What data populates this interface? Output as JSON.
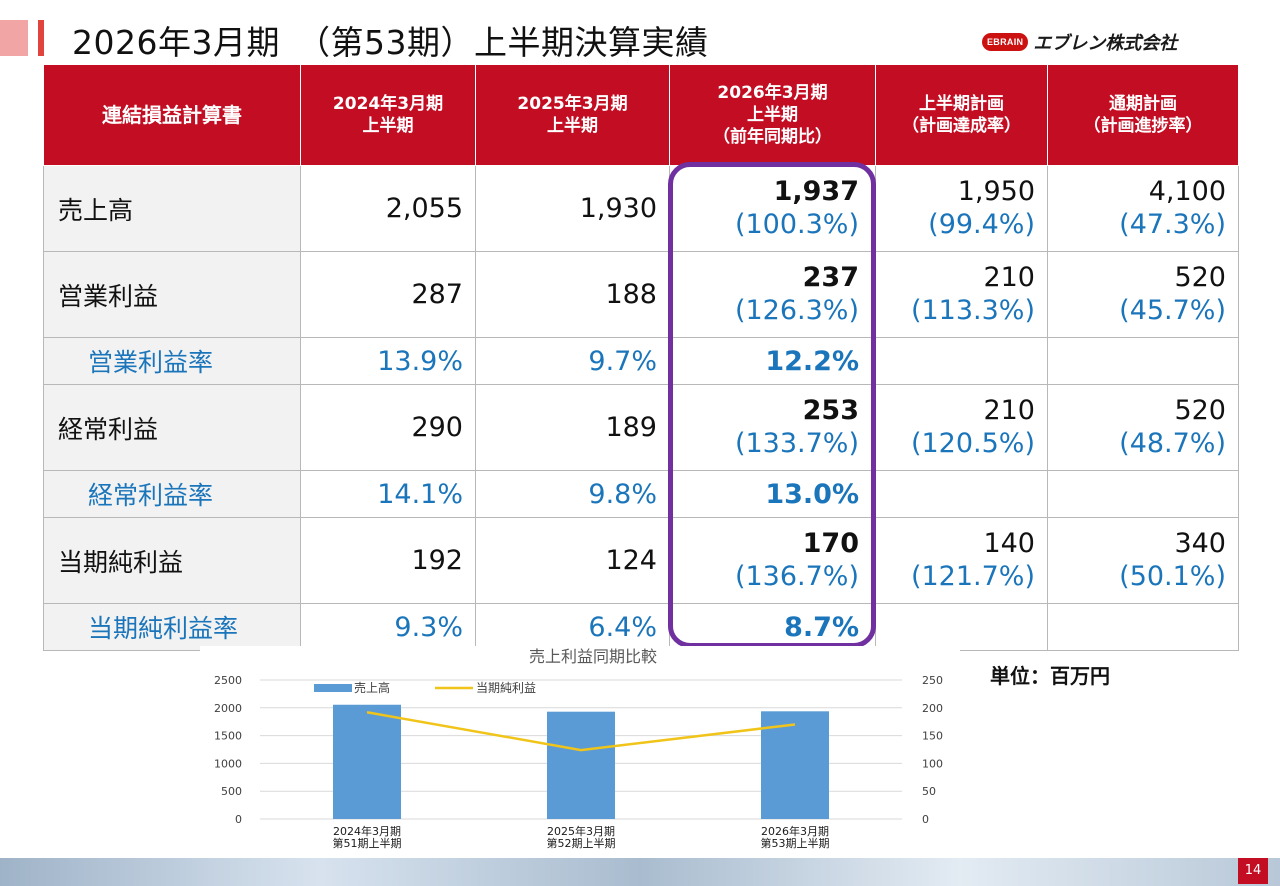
{
  "title": "2026年3月期　（第53期）上半期決算実績",
  "logo": {
    "badge": "EBRAIN",
    "text": "エブレン株式会社"
  },
  "colors": {
    "header_red": "#c30d23",
    "blue_text": "#1b75bb",
    "highlight_border": "#7030a0",
    "bar": "#5b9bd5",
    "line": "#f0c419"
  },
  "table": {
    "headers": [
      "連結損益計算書",
      "2024年3月期\n上半期",
      "2025年3月期\n上半期",
      "2026年3月期\n上半期\n（前年同期比）",
      "上半期計画\n（計画達成率）",
      "通期計画\n（計画進捗率）"
    ],
    "rows": [
      {
        "label": "売上高",
        "fy2024": "2,055",
        "fy2025": "1,930",
        "fy2026": "1,937",
        "fy2026_pct": "(100.3%)",
        "plan_h1": "1,950",
        "plan_h1_pct": "(99.4%)",
        "plan_full": "4,100",
        "plan_full_pct": "(47.3%)"
      },
      {
        "label": "営業利益",
        "fy2024": "287",
        "fy2025": "188",
        "fy2026": "237",
        "fy2026_pct": "(126.3%)",
        "plan_h1": "210",
        "plan_h1_pct": "(113.3%)",
        "plan_full": "520",
        "plan_full_pct": "(45.7%)"
      },
      {
        "label": "営業利益率",
        "fy2024": "13.9%",
        "fy2025": "9.7%",
        "fy2026": "12.2%"
      },
      {
        "label": "経常利益",
        "fy2024": "290",
        "fy2025": "189",
        "fy2026": "253",
        "fy2026_pct": "(133.7%)",
        "plan_h1": "210",
        "plan_h1_pct": "(120.5%)",
        "plan_full": "520",
        "plan_full_pct": "(48.7%)"
      },
      {
        "label": "経常利益率",
        "fy2024": "14.1%",
        "fy2025": "9.8%",
        "fy2026": "13.0%"
      },
      {
        "label": "当期純利益",
        "fy2024": "192",
        "fy2025": "124",
        "fy2026": "170",
        "fy2026_pct": "(136.7%)",
        "plan_h1": "140",
        "plan_h1_pct": "(121.7%)",
        "plan_full": "340",
        "plan_full_pct": "(50.1%)"
      },
      {
        "label": "当期純利益率",
        "fy2024": "9.3%",
        "fy2025": "6.4%",
        "fy2026": "8.7%"
      }
    ]
  },
  "unit_label": "単位：百万円",
  "page_number": "14",
  "chart_data": {
    "type": "bar",
    "title": "売上利益同期比較",
    "categories": [
      "2024年3月期\n第51期上半期",
      "2025年3月期\n第52期上半期",
      "2026年3月期\n第53期上半期"
    ],
    "series": [
      {
        "name": "売上高",
        "type": "bar",
        "axis": "left",
        "values": [
          2055,
          1930,
          1937
        ]
      },
      {
        "name": "当期純利益",
        "type": "line",
        "axis": "right",
        "values": [
          192,
          124,
          170
        ]
      }
    ],
    "ylim_left": [
      0,
      2500
    ],
    "yticks_left": [
      "0",
      "500",
      "1000",
      "1500",
      "2000",
      "2500"
    ],
    "ylim_right": [
      0,
      250
    ],
    "yticks_right": [
      "0",
      "50",
      "100",
      "150",
      "200",
      "250"
    ],
    "legend": "top-left",
    "grid": true
  }
}
